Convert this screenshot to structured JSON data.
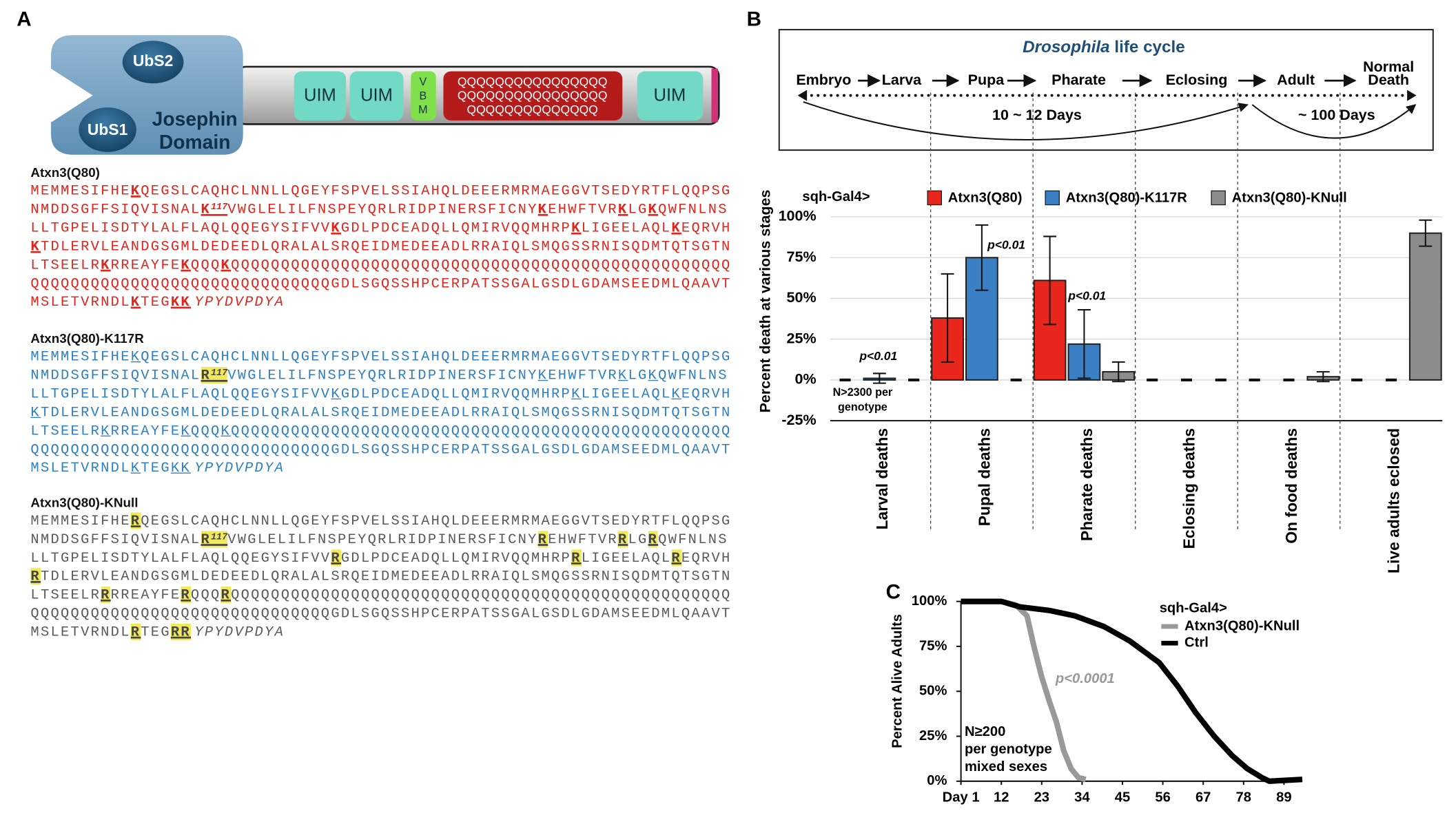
{
  "panel_labels": [
    "A",
    "B",
    "C"
  ],
  "domain_diagram": {
    "ubs2": "UbS2",
    "ubs1": "UbS1",
    "josephin": [
      "Josephin",
      "Domain"
    ],
    "uim": [
      "UIM",
      "UIM",
      "UIM"
    ],
    "vbm": [
      "V",
      "B",
      "M"
    ],
    "polyq": [
      "QQQQQQQQQQQQQQQQ",
      "QQQQQQQQQQQQQQQQ",
      "QQQQQQQQQQQQQQ"
    ]
  },
  "sequences": [
    {
      "name": "Atxn3(Q80)",
      "color": "#e0261c",
      "highlight": "bold-underline",
      "lines": [
        [
          "MEMMESIFHE",
          {
            "residue": "K"
          },
          "QEGSLCAQHCLNNLLQGEYFSPVELSSIAHQLDEEERMRMAEGGVTSEDYRTFLQQPSG"
        ],
        [
          "NMDDSGFFSIQVISNAL",
          {
            "residue": "K",
            "sup": "117"
          },
          "VWGLELILFNSPEYQRLRIDPINERSFICNY",
          {
            "residue": "K"
          },
          "EHWFTVR",
          {
            "residue": "K"
          },
          "LG",
          {
            "residue": "K"
          },
          "QWFNLNS"
        ],
        [
          "LLTGPELISDTYLALFLAQLQQEGYSIFVV",
          {
            "residue": "K"
          },
          "GDLPDCEADQLLQMIRVQQMHRP",
          {
            "residue": "K"
          },
          "LIGEELAQL",
          {
            "residue": "K"
          },
          "EQRVH"
        ],
        [
          {
            "residue": "K"
          },
          "TDLERVLEANDGSGMLDEDEEDLQRALALSRQEIDMEDEEADLRRAIQLSMQGSSRNISQDMTQTSGTN"
        ],
        [
          "LTSEELR",
          {
            "residue": "K"
          },
          "RREAYFE",
          {
            "residue": "K"
          },
          "QQQ",
          {
            "residue": "K"
          },
          "QQQQQQQQQQQQQQQQQQQQQQQQQQQQQQQQQQQQQQQQQQQQQQQQQQ"
        ],
        [
          "QQQQQQQQQQQQQQQQQQQQQQQQQQQQQQGDLSGQSSHPCERPATSSGALGSDLGDAMSEEDMLQAAVT"
        ],
        [
          "MSLETVRNDL",
          {
            "residue": "K"
          },
          "TEG",
          {
            "residue": "KK"
          },
          {
            "tag": "YPYDVPDYA"
          }
        ]
      ]
    },
    {
      "name": "Atxn3(Q80)-K117R",
      "color": "#2f7fc1",
      "highlight": "underline",
      "lines": [
        [
          "MEMMESIFHE",
          {
            "residue": "K"
          },
          "QEGSLCAQHCLNNLLQGEYFSPVELSSIAHQLDEEERMRMAEGGVTSEDYRTFLQQPSG"
        ],
        [
          "NMDDSGFFSIQVISNAL",
          {
            "residue": "R",
            "sup": "117",
            "highlight": "yellow"
          },
          "VWGLELILFNSPEYQRLRIDPINERSFICNY",
          {
            "residue": "K"
          },
          "EHWFTVR",
          {
            "residue": "K"
          },
          "LG",
          {
            "residue": "K"
          },
          "QWFNLNS"
        ],
        [
          "LLTGPELISDTYLALFLAQLQQEGYSIFVV",
          {
            "residue": "K"
          },
          "GDLPDCEADQLLQMIRVQQMHRP",
          {
            "residue": "K"
          },
          "LIGEELAQL",
          {
            "residue": "K"
          },
          "EQRVH"
        ],
        [
          {
            "residue": "K"
          },
          "TDLERVLEANDGSGMLDEDEEDLQRALALSRQEIDMEDEEADLRRAIQLSMQGSSRNISQDMTQTSGTN"
        ],
        [
          "LTSEELR",
          {
            "residue": "K"
          },
          "RREAYFE",
          {
            "residue": "K"
          },
          "QQQ",
          {
            "residue": "K"
          },
          "QQQQQQQQQQQQQQQQQQQQQQQQQQQQQQQQQQQQQQQQQQQQQQQQQQ"
        ],
        [
          "QQQQQQQQQQQQQQQQQQQQQQQQQQQQQQGDLSGQSSHPCERPATSSGALGSDLGDAMSEEDMLQAAVT"
        ],
        [
          "MSLETVRNDL",
          {
            "residue": "K"
          },
          "TEG",
          {
            "residue": "KK"
          },
          {
            "tag": "YPYDVPDYA"
          }
        ]
      ]
    },
    {
      "name": "Atxn3(Q80)-KNull",
      "color": "#5a5a5a",
      "highlight": "yellow",
      "lines": [
        [
          "MEMMESIFHE",
          {
            "residue": "R"
          },
          "QEGSLCAQHCLNNLLQGEYFSPVELSSIAHQLDEEERMRMAEGGVTSEDYRTFLQQPSG"
        ],
        [
          "NMDDSGFFSIQVISNAL",
          {
            "residue": "R",
            "sup": "117"
          },
          "VWGLELILFNSPEYQRLRIDPINERSFICNY",
          {
            "residue": "R"
          },
          "EHWFTVR",
          {
            "residue": "R"
          },
          "LG",
          {
            "residue": "R"
          },
          "QWFNLNS"
        ],
        [
          "LLTGPELISDTYLALFLAQLQQEGYSIFVV",
          {
            "residue": "R"
          },
          "GDLPDCEADQLLQMIRVQQMHRP",
          {
            "residue": "R"
          },
          "LIGEELAQL",
          {
            "residue": "R"
          },
          "EQRVH"
        ],
        [
          {
            "residue": "R"
          },
          "TDLERVLEANDGSGMLDEDEEDLQRALALSRQEIDMEDEEADLRRAIQLSMQGSSRNISQDMTQTSGTN"
        ],
        [
          "LTSEELR",
          {
            "residue": "R"
          },
          "RREAYFE",
          {
            "residue": "R"
          },
          "QQQ",
          {
            "residue": "R"
          },
          "QQQQQQQQQQQQQQQQQQQQQQQQQQQQQQQQQQQQQQQQQQQQQQQQQQ"
        ],
        [
          "QQQQQQQQQQQQQQQQQQQQQQQQQQQQQQGDLSGQSSHPCERPATSSGALGSDLGDAMSEEDMLQAAVT"
        ],
        [
          "MSLETVRNDL",
          {
            "residue": "R"
          },
          "TEG",
          {
            "residue": "RR"
          },
          {
            "tag": "YPYDVPDYA"
          }
        ]
      ]
    }
  ],
  "life_cycle": {
    "title_italic": "Drosophila",
    "title": "life cycle",
    "stages": [
      "Embryo",
      "Larva",
      "Pupa",
      "Pharate",
      "Eclosing",
      "Adult"
    ],
    "final_stage": [
      "Normal",
      "Death"
    ],
    "spans": [
      "10 ~ 12 Days",
      "~ 100 Days"
    ]
  },
  "chart_data": [
    {
      "type": "bar",
      "legend_title": "sqh-Gal4>",
      "ylabel": "Percent death at various stages",
      "categories": [
        "Larval deaths",
        "Pupal deaths",
        "Pharate deaths",
        "Eclosing deaths",
        "On food deaths",
        "Live adults eclosed"
      ],
      "series": [
        {
          "name": "Atxn3(Q80)",
          "color": "#e8261c",
          "values": [
            0,
            38,
            61,
            0,
            0,
            0
          ],
          "errors": [
            null,
            27,
            27,
            null,
            null,
            null
          ]
        },
        {
          "name": "Atxn3(Q80)-K117R",
          "color": "#3a7fc4",
          "values": [
            1,
            75,
            22,
            0,
            0,
            0
          ],
          "errors": [
            3,
            20,
            21,
            null,
            null,
            null
          ]
        },
        {
          "name": "Atxn3(Q80)-KNull",
          "color": "#8c8c8c",
          "values": [
            0,
            0,
            5,
            0,
            2,
            90
          ],
          "errors": [
            null,
            null,
            6,
            null,
            3,
            8
          ]
        }
      ],
      "ylim": [
        -25,
        100
      ],
      "yticks": [
        {
          "value": -25,
          "label": "-25%"
        },
        {
          "value": 0,
          "label": "0%"
        },
        {
          "value": 25,
          "label": "25%"
        },
        {
          "value": 50,
          "label": "50%"
        },
        {
          "value": 75,
          "label": "75%"
        },
        {
          "value": 100,
          "label": "100%"
        }
      ],
      "grid": true,
      "annotations": [
        "p<0.01",
        "p<0.01",
        "p<0.01"
      ],
      "note": [
        "N>2300 per",
        "genotype"
      ]
    },
    {
      "type": "line",
      "legend_title": "sqh-Gal4>",
      "ylabel": "Percent Alive Adults",
      "series": [
        {
          "name": "Atxn3(Q80)-KNull",
          "color": "#999999",
          "x": [
            1,
            12,
            16,
            19,
            21,
            23,
            25,
            27,
            29,
            31,
            33,
            35
          ],
          "values": [
            100,
            100,
            98,
            92,
            74,
            58,
            45,
            33,
            17,
            7,
            2,
            1
          ]
        },
        {
          "name": "Ctrl",
          "color": "#000000",
          "x": [
            1,
            12,
            17,
            25,
            32,
            40,
            47,
            55,
            60,
            65,
            70,
            75,
            79,
            83,
            85,
            94
          ],
          "values": [
            100,
            100,
            97,
            95,
            92,
            86,
            78,
            66,
            53,
            38,
            25,
            14,
            7,
            2,
            0,
            1
          ]
        }
      ],
      "xlim": [
        1,
        94
      ],
      "xticks": [
        {
          "value": 1,
          "label": "Day 1"
        },
        12,
        23,
        34,
        45,
        56,
        67,
        78,
        89
      ],
      "ylim": [
        0,
        100
      ],
      "yticks": [
        {
          "value": 0,
          "label": "0%"
        },
        {
          "value": 25,
          "label": "25%"
        },
        {
          "value": 50,
          "label": "50%"
        },
        {
          "value": 75,
          "label": "75%"
        },
        {
          "value": 100,
          "label": "100%"
        }
      ],
      "annotations": [
        "p<0.0001"
      ],
      "note": [
        "N≥200",
        "per genotype",
        "mixed sexes"
      ]
    }
  ]
}
